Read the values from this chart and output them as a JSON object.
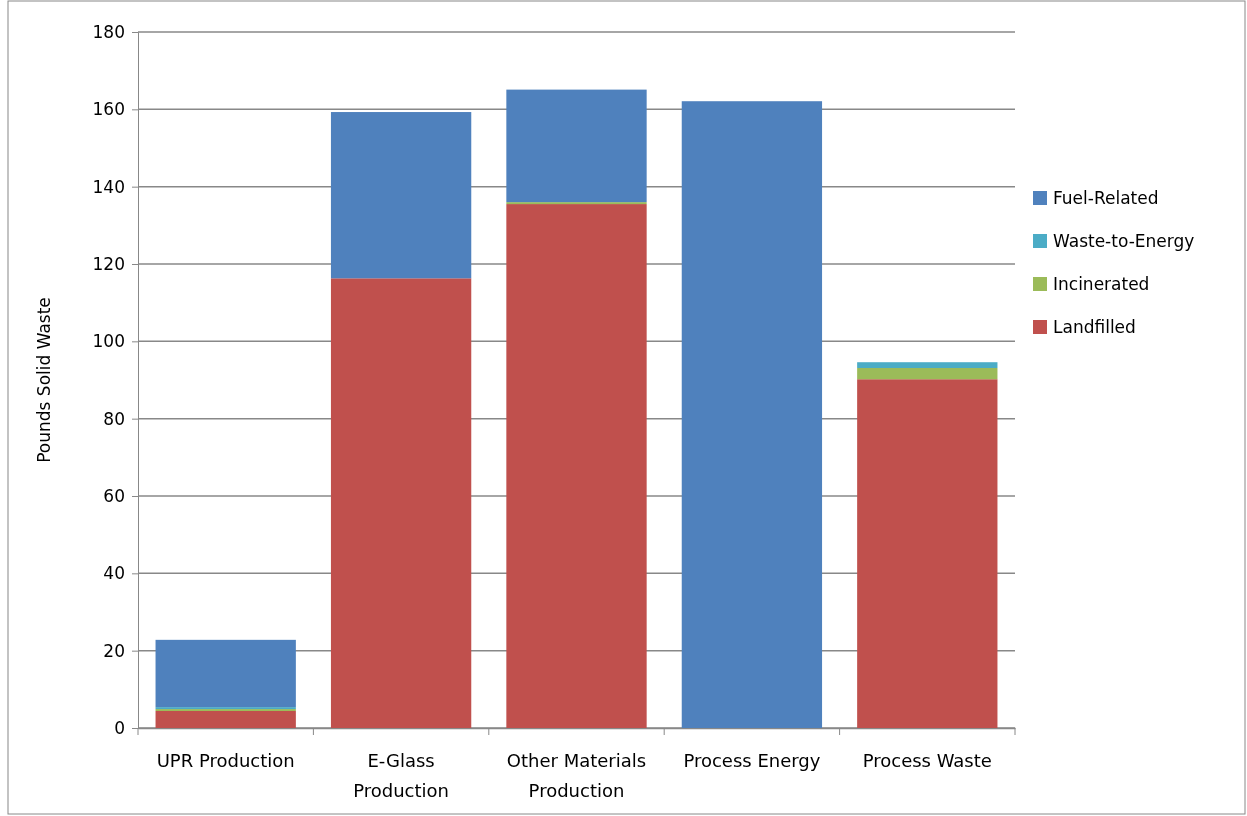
{
  "chart_data": {
    "type": "bar",
    "stacked": true,
    "ylabel": "Pounds Solid Waste",
    "categories": [
      "UPR Production",
      "E-Glass Production",
      "Other Materials Production",
      "Process Energy",
      "Process Waste"
    ],
    "series": [
      {
        "name": "Landfilled",
        "color": "#c0504d",
        "values": [
          4.4,
          116.3,
          135.5,
          0,
          90.2
        ]
      },
      {
        "name": "Incinerated",
        "color": "#9bbb59",
        "values": [
          0.5,
          0,
          0.5,
          0,
          2.9
        ]
      },
      {
        "name": "Waste-to-Energy",
        "color": "#4bacc6",
        "values": [
          0.5,
          0,
          0,
          0,
          1.5
        ]
      },
      {
        "name": "Fuel-Related",
        "color": "#4f81bd",
        "values": [
          17.4,
          43,
          29.1,
          162.1,
          0
        ]
      }
    ],
    "ylim": [
      0,
      180
    ],
    "yticks": [
      0,
      20,
      40,
      60,
      80,
      100,
      120,
      140,
      160,
      180
    ],
    "grid": "y",
    "legend": "right"
  }
}
